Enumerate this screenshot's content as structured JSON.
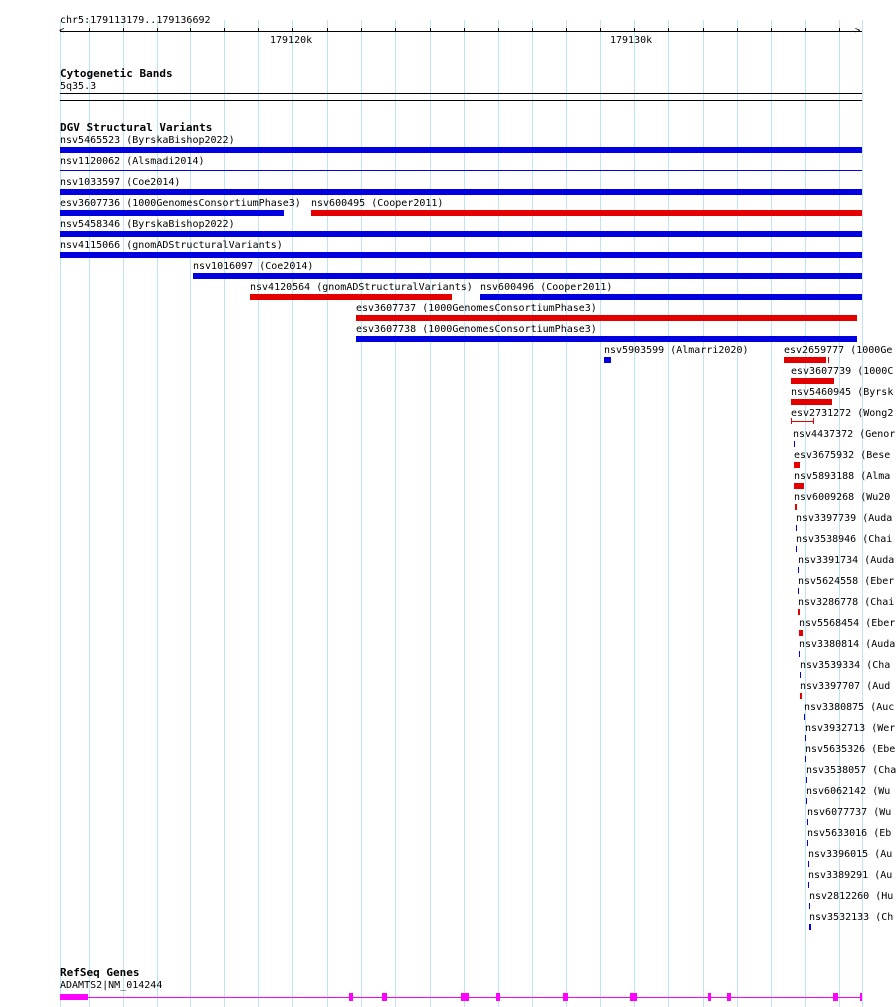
{
  "colors": {
    "loss": "#e50000",
    "gain": "#0000e0",
    "gene": "#ff00ff",
    "grid": "#bfe3f2"
  },
  "ruler": {
    "location": "chr5:179113179..179136692",
    "tick_labels": [
      "179120k",
      "179130k"
    ]
  },
  "cytoband": {
    "title": "Cytogenetic Bands",
    "band": "5q35.3"
  },
  "dgv": {
    "title": "DGV Structural Variants",
    "labels": [
      "nsv5465523 (ByrskaBishop2022)",
      "nsv1120062 (Alsmadi2014)",
      "nsv1033597 (Coe2014)",
      "esv3607736 (1000GenomesConsortiumPhase3)",
      "nsv600495 (Cooper2011)",
      "nsv5458346 (ByrskaBishop2022)",
      "nsv4115066 (gnomADStructuralVariants)",
      "nsv1016097 (Coe2014)",
      "nsv4120564 (gnomADStructuralVariants)",
      "nsv600496 (Cooper2011)",
      "esv3607737 (1000GenomesConsortiumPhase3)",
      "esv3607738 (1000GenomesConsortiumPhase3)",
      "nsv5903599 (Almarri2020)",
      "esv2659777 (1000Ge",
      "esv3607739 (1000C",
      "nsv5460945 (Byrsk",
      "esv2731272 (Wong2",
      "nsv4437372 (Genor",
      "esv3675932 (Bese",
      "nsv5893188 (Alma",
      "nsv6009268 (Wu20",
      "nsv3397739 (Auda",
      "nsv3538946 (Chai",
      "nsv3391734 (Auda",
      "nsv5624558 (Eber",
      "nsv3286778 (Chai",
      "nsv5568454 (Eber",
      "nsv3380814 (Auda",
      "nsv3539334 (Cha",
      "nsv3397707 (Aud",
      "nsv3380875 (Auc",
      "nsv3932713 (Wer",
      "nsv5635326 (Ebe",
      "nsv3538057 (Cha",
      "nsv6062142 (Wu",
      "nsv6077737 (Wu",
      "nsv5633016 (Eb",
      "nsv3396015 (Au",
      "nsv3389291 (Au",
      "nsv2812260 (Hu",
      "nsv3532133 (Ch"
    ]
  },
  "refseq": {
    "title": "RefSeq Genes",
    "gene_label": "ADAMTS2|NM_014244"
  }
}
